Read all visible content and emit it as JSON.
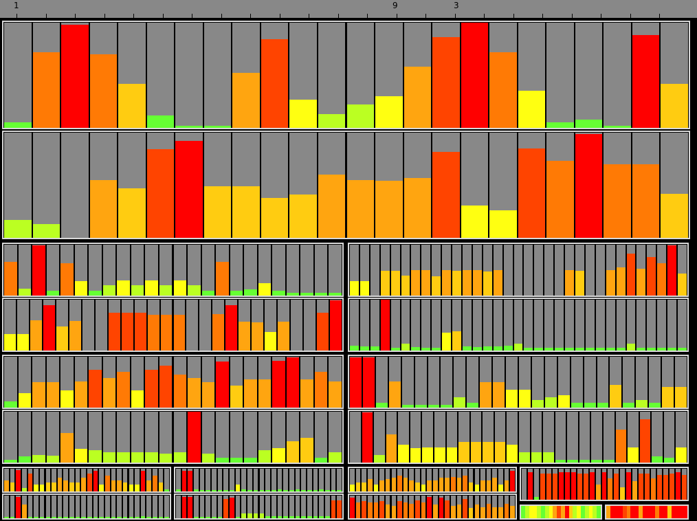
{
  "ruler": {
    "labels": [
      "1",
      "9",
      "3"
    ]
  },
  "colors": {
    "background": "#000000",
    "empty": "#888888",
    "border": "#d8d8d8",
    "scale": [
      "#66ff33",
      "#bbff22",
      "#ffff11",
      "#ffcc11",
      "#ffa510",
      "#ff7a05",
      "#ff4400",
      "#ff0000"
    ]
  },
  "chart_data": [
    {
      "type": "bar",
      "panel": "p1",
      "values": [
        0.05,
        0.72,
        0.98,
        0.7,
        0.42,
        0.12,
        0.02,
        0.02,
        0.52,
        0.84,
        0.27,
        0.13,
        0.22,
        0.3,
        0.58,
        0.86,
        1.0,
        0.72,
        0.35,
        0.05,
        0.08,
        0.02,
        0.88,
        0.42
      ]
    },
    {
      "type": "bar",
      "panel": "p2",
      "values": [
        0.17,
        0.13,
        0.0,
        0.55,
        0.47,
        0.84,
        0.92,
        0.49,
        0.49,
        0.38,
        0.41,
        0.6,
        0.55,
        0.54,
        0.57,
        0.82,
        0.31,
        0.26,
        0.85,
        0.73,
        0.99,
        0.7,
        0.7,
        0.42
      ]
    },
    {
      "type": "bar",
      "panel": "p3",
      "values": [
        0.66,
        0.13,
        0.98,
        0.1,
        0.63,
        0.29,
        0.1,
        0.2,
        0.3,
        0.2,
        0.3,
        0.2,
        0.3,
        0.2,
        0.1,
        0.66,
        0.1,
        0.12,
        0.25,
        0.1,
        0.05,
        0.05,
        0.05,
        0.05
      ]
    },
    {
      "type": "bar",
      "panel": "p4",
      "values": [
        0.28,
        0.28,
        0.0,
        0.48,
        0.48,
        0.39,
        0.5,
        0.5,
        0.38,
        0.5,
        0.48,
        0.5,
        0.5,
        0.47,
        0.5,
        0.0,
        0.0,
        0.0,
        0.0,
        0.0,
        0.0,
        0.5,
        0.48,
        0.0,
        0.0,
        0.5,
        0.55,
        0.82,
        0.53,
        0.76,
        0.64,
        0.98,
        0.43
      ]
    },
    {
      "type": "bar",
      "panel": "p5",
      "values": [
        0.33,
        0.33,
        0.6,
        0.89,
        0.47,
        0.58,
        0.0,
        0.0,
        0.75,
        0.75,
        0.75,
        0.7,
        0.7,
        0.7,
        0.0,
        0.0,
        0.71,
        0.89,
        0.57,
        0.55,
        0.37,
        0.57,
        0.0,
        0.0,
        0.75,
        0.99
      ]
    },
    {
      "type": "bar",
      "panel": "p6",
      "values": [
        0.1,
        0.08,
        0.08,
        1.0,
        0.05,
        0.13,
        0.07,
        0.05,
        0.05,
        0.35,
        0.38,
        0.08,
        0.07,
        0.08,
        0.08,
        0.1,
        0.13,
        0.05,
        0.05,
        0.05,
        0.05,
        0.05,
        0.05,
        0.05,
        0.05,
        0.05,
        0.05,
        0.13,
        0.05,
        0.05,
        0.05,
        0.05,
        0.05
      ]
    },
    {
      "type": "bar",
      "panel": "p7",
      "values": [
        0.12,
        0.28,
        0.5,
        0.5,
        0.34,
        0.52,
        0.75,
        0.58,
        0.7,
        0.34,
        0.75,
        0.82,
        0.65,
        0.58,
        0.5,
        0.91,
        0.43,
        0.55,
        0.55,
        0.92,
        0.99,
        0.55,
        0.7,
        0.52
      ]
    },
    {
      "type": "bar",
      "panel": "p8",
      "values": [
        0.98,
        0.98,
        0.1,
        0.51,
        0.05,
        0.05,
        0.05,
        0.05,
        0.2,
        0.1,
        0.5,
        0.5,
        0.35,
        0.35,
        0.15,
        0.2,
        0.25,
        0.1,
        0.1,
        0.1,
        0.45,
        0.1,
        0.15,
        0.1,
        0.4,
        0.4
      ]
    },
    {
      "type": "bar",
      "panel": "p9",
      "values": [
        0.06,
        0.12,
        0.15,
        0.14,
        0.58,
        0.27,
        0.24,
        0.2,
        0.2,
        0.2,
        0.2,
        0.18,
        0.2,
        1.0,
        0.18,
        0.1,
        0.1,
        0.1,
        0.24,
        0.28,
        0.42,
        0.48,
        0.1,
        0.2
      ]
    },
    {
      "type": "bar",
      "panel": "p10",
      "values": [
        0.0,
        0.99,
        0.15,
        0.56,
        0.35,
        0.28,
        0.3,
        0.3,
        0.3,
        0.4,
        0.4,
        0.4,
        0.4,
        0.35,
        0.2,
        0.2,
        0.2,
        0.05,
        0.05,
        0.05,
        0.05,
        0.05,
        0.65,
        0.3,
        0.85,
        0.12,
        0.1,
        0.3
      ]
    },
    {
      "type": "bar",
      "panel": "p11",
      "values": [
        0.5,
        0.4,
        0.95,
        0.15,
        0.8,
        0.3,
        0.3,
        0.4,
        0.4,
        0.6,
        0.5,
        0.4,
        0.4,
        0.6,
        0.8,
        0.9,
        0.3,
        0.7,
        0.5,
        0.5,
        0.4,
        0.3,
        0.3,
        0.9,
        0.5,
        0.7,
        0.4,
        0.1
      ]
    },
    {
      "type": "bar",
      "panel": "p12",
      "values": [
        0.1,
        0.9,
        0.9,
        0.1,
        0.05,
        0.05,
        0.05,
        0.05,
        0.05,
        0.05,
        0.3,
        0.1,
        0.05,
        0.05,
        0.05,
        0.05,
        0.05,
        0.1,
        0.05,
        0.05,
        0.1,
        0.05,
        0.05,
        0.05,
        0.1,
        0.05,
        0.05,
        0.05
      ]
    },
    {
      "type": "bar",
      "panel": "p13",
      "values": [
        0.3,
        0.4,
        0.4,
        0.55,
        0.3,
        0.5,
        0.55,
        0.6,
        0.7,
        0.6,
        0.5,
        0.4,
        0.3,
        0.5,
        0.5,
        0.6,
        0.6,
        0.65,
        0.6,
        0.7,
        0.4,
        0.3,
        0.5,
        0.5,
        0.6,
        0.3,
        0.5,
        0.9
      ]
    },
    {
      "type": "bar",
      "panel": "p14",
      "values": [
        0.0,
        0.9,
        0.1,
        0.85,
        0.85,
        0.85,
        0.9,
        0.9,
        0.9,
        0.85,
        0.85,
        0.9,
        0.5,
        0.9,
        0.7,
        0.85,
        0.4,
        0.9,
        0.6,
        0.85,
        0.85,
        0.7,
        0.8,
        0.8,
        0.85,
        0.9,
        0.8
      ]
    },
    {
      "type": "bar",
      "panel": "p15",
      "values": [
        0.05,
        0.05,
        0.95,
        0.6,
        0.05,
        0.05,
        0.05,
        0.05,
        0.05,
        0.05,
        0.05,
        0.05,
        0.05,
        0.05,
        0.05,
        0.05,
        0.05,
        0.05,
        0.05,
        0.05,
        0.05,
        0.05,
        0.05,
        0.1,
        0.05,
        0.05,
        0.05,
        0.05
      ]
    },
    {
      "type": "bar",
      "panel": "p16",
      "values": [
        0.0,
        0.95,
        0.95,
        0.05,
        0.05,
        0.05,
        0.05,
        0.05,
        0.85,
        0.9,
        0.05,
        0.2,
        0.2,
        0.2,
        0.2,
        0.1,
        0.1,
        0.1,
        0.1,
        0.1,
        0.1,
        0.1,
        0.1,
        0.1,
        0.1,
        0.1,
        0.8,
        0.8
      ]
    },
    {
      "type": "bar",
      "panel": "p17",
      "values": [
        0.9,
        0.7,
        0.75,
        0.7,
        0.7,
        0.75,
        0.6,
        0.55,
        0.75,
        0.7,
        0.65,
        0.8,
        0.7,
        0.95,
        0.6,
        0.9,
        0.8,
        0.55,
        0.6,
        0.85,
        0.45,
        0.6,
        0.5,
        0.65,
        0.5,
        0.5,
        0.65,
        0.55
      ]
    },
    {
      "type": "bar",
      "panel": "p18",
      "values": [
        0.15,
        0.25,
        0.5,
        0.3,
        0.15,
        0.15,
        0.15,
        0.15,
        0.15,
        0.15,
        0.15,
        0.15,
        0.15,
        0.15,
        0.15,
        0.15,
        0.2,
        0.15,
        0.2,
        0.15,
        0.15,
        0.15,
        0.15,
        0.15,
        0.15,
        0.15,
        0.15,
        0.15
      ]
    },
    {
      "type": "bar",
      "panel": "p19",
      "values": [
        0.0,
        0.0,
        0.95,
        0.9,
        0.3,
        0.7,
        0.55,
        0.3,
        0.05,
        0.3,
        0.2,
        0.7,
        0.45,
        0.7,
        0.15,
        0.15,
        0.9
      ]
    },
    {
      "type": "bar",
      "panel": "p20",
      "values": [
        0.0,
        0.0,
        0.05,
        0.1,
        0.05,
        0.05,
        0.05,
        0.05,
        0.05,
        0.05,
        0.05,
        0.1,
        0.05,
        0.1,
        0.1,
        0.05
      ]
    }
  ]
}
